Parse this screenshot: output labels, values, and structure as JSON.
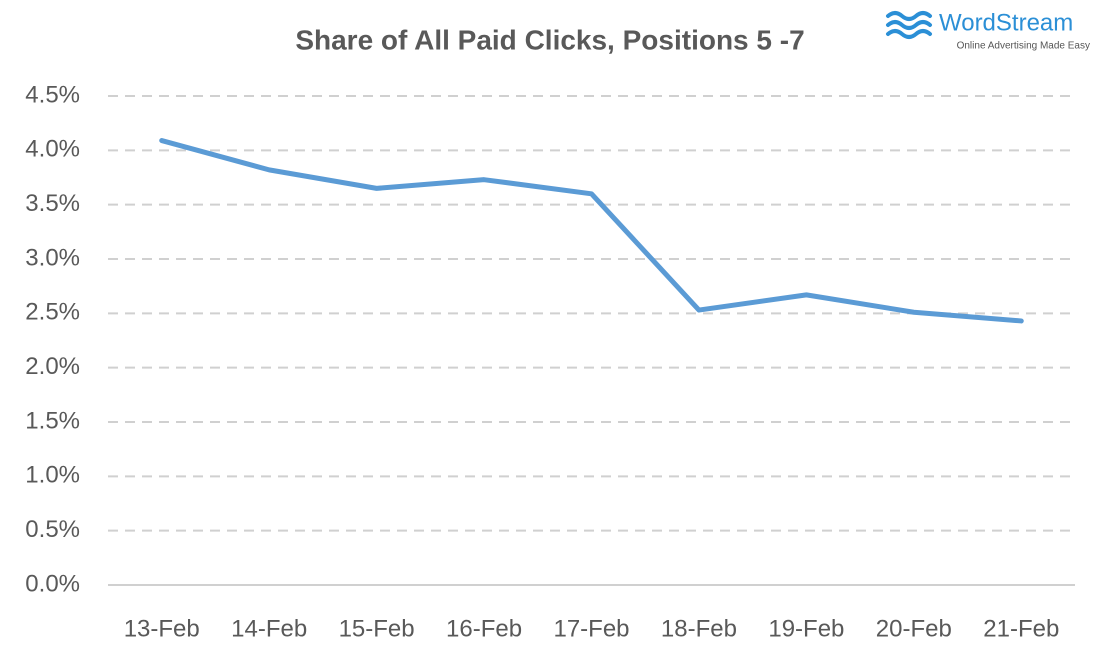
{
  "chart_data": {
    "type": "line",
    "title": "Share of All Paid Clicks, Positions 5 -7",
    "categories": [
      "13-Feb",
      "14-Feb",
      "15-Feb",
      "16-Feb",
      "17-Feb",
      "18-Feb",
      "19-Feb",
      "20-Feb",
      "21-Feb"
    ],
    "values": [
      4.09,
      3.82,
      3.65,
      3.73,
      3.6,
      2.53,
      2.67,
      2.51,
      2.43
    ],
    "color": "#5b9bd5",
    "ylim": [
      0,
      4.5
    ],
    "yticks": [
      {
        "value": 0,
        "label": "0.0%"
      },
      {
        "value": 0.5,
        "label": "0.5%"
      },
      {
        "value": 1,
        "label": "1.0%"
      },
      {
        "value": 1.5,
        "label": "1.5%"
      },
      {
        "value": 2,
        "label": "2.0%"
      },
      {
        "value": 2.5,
        "label": "2.5%"
      },
      {
        "value": 3,
        "label": "3.0%"
      },
      {
        "value": 3.5,
        "label": "3.5%"
      },
      {
        "value": 4,
        "label": "4.0%"
      },
      {
        "value": 4.5,
        "label": "4.5%"
      }
    ],
    "grid": true
  },
  "logo": {
    "name": "WordStream",
    "tagline": "Online Advertising Made Easy"
  }
}
